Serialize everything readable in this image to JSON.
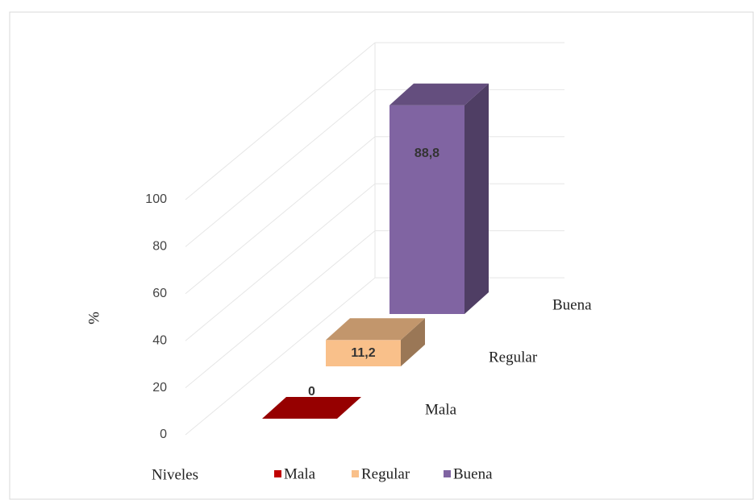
{
  "chart_data": {
    "type": "bar3d",
    "y_label": "%",
    "x_label": "Niveles",
    "series": [
      {
        "name": "Mala",
        "color": "#c00000",
        "values": [
          0
        ],
        "value_labels": [
          "0"
        ]
      },
      {
        "name": "Regular",
        "color": "#f9c08a",
        "values": [
          11.2
        ],
        "value_labels": [
          "11,2"
        ]
      },
      {
        "name": "Buena",
        "color": "#8064a2",
        "values": [
          88.8
        ],
        "value_labels": [
          "88,8"
        ]
      }
    ],
    "ylim": [
      0,
      100
    ],
    "yticks": [
      0,
      20,
      40,
      60,
      80,
      100
    ],
    "grid": true,
    "legend": "bottom"
  }
}
